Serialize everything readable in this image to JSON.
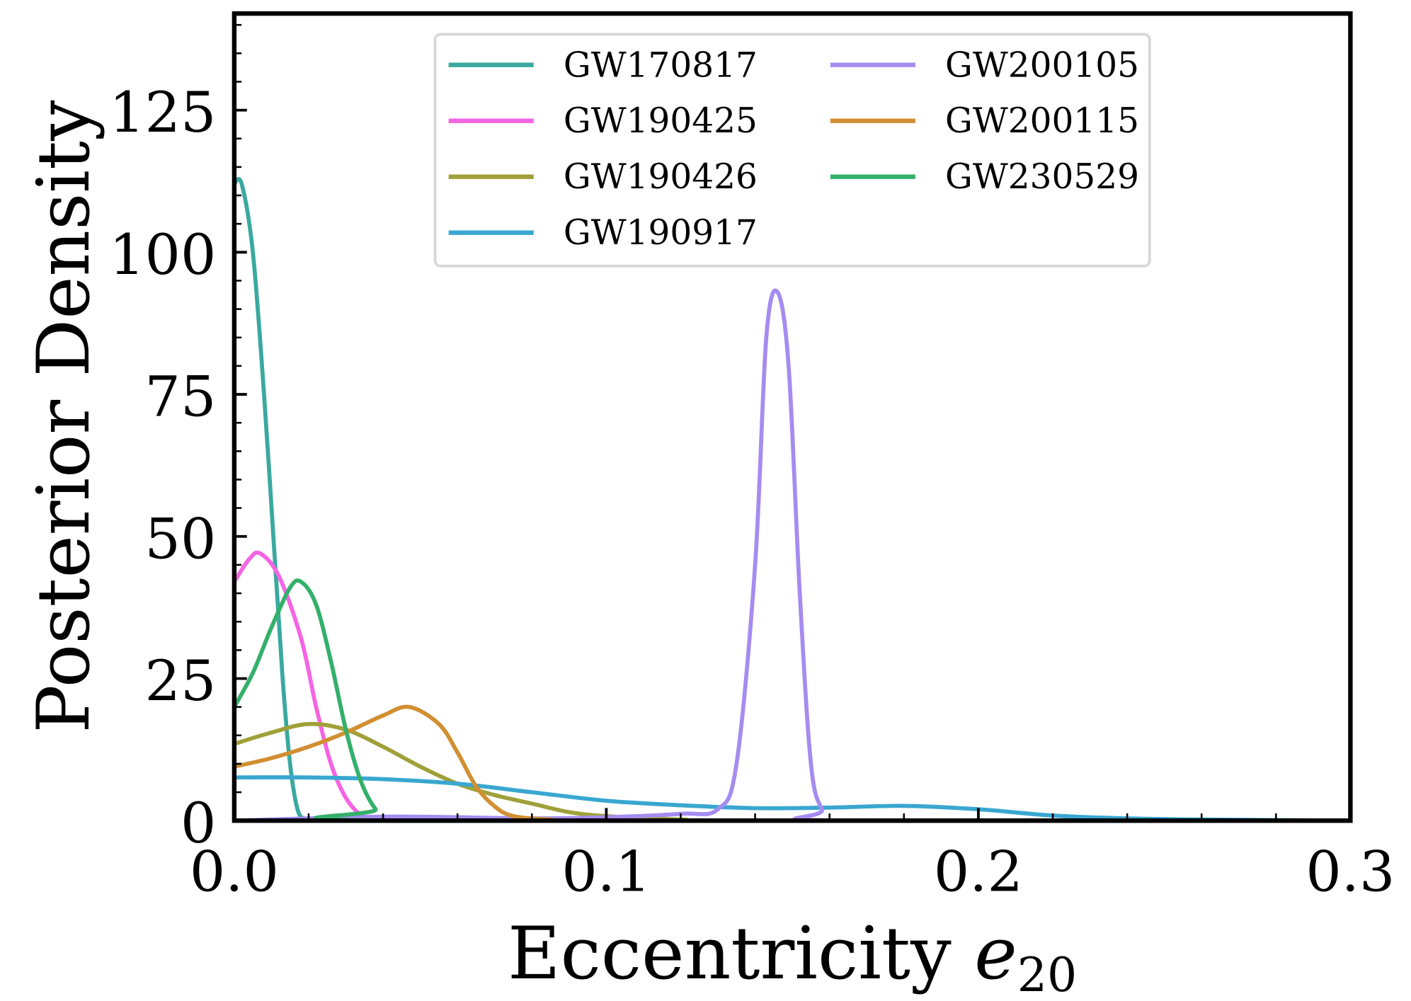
{
  "chart_data": {
    "type": "line",
    "title": "",
    "xlabel": "Eccentricity",
    "xlabel_symbol": "e",
    "xlabel_subscript": "20",
    "ylabel": "Posterior Density",
    "xlim": [
      0,
      0.3
    ],
    "ylim": [
      0,
      142
    ],
    "xticks": [
      0.0,
      0.1,
      0.2,
      0.3
    ],
    "xtick_labels": [
      "0.0",
      "0.1",
      "0.2",
      "0.3"
    ],
    "yticks": [
      0,
      25,
      50,
      75,
      100,
      125
    ],
    "ytick_labels": [
      "0",
      "25",
      "50",
      "75",
      "100",
      "125"
    ],
    "grid": false,
    "legend_placement": "top-center",
    "series": [
      {
        "name": "GW170817",
        "color": "#3aa99f",
        "x": [
          0,
          0.002,
          0.005,
          0.008,
          0.011,
          0.013,
          0.015,
          0.017,
          0.019,
          0.022,
          0.3
        ],
        "y": [
          112,
          112,
          100,
          75,
          45,
          25,
          10,
          2,
          0.3,
          0,
          0
        ]
      },
      {
        "name": "GW190425",
        "color": "#f564e3",
        "x": [
          0,
          0.004,
          0.007,
          0.012,
          0.018,
          0.022,
          0.026,
          0.03,
          0.034,
          0.038,
          0.3
        ],
        "y": [
          42,
          46,
          47,
          43,
          32,
          20,
          10,
          4,
          1,
          0,
          0
        ]
      },
      {
        "name": "GW190426",
        "color": "#a0a03a",
        "x": [
          0,
          0.01,
          0.02,
          0.03,
          0.04,
          0.05,
          0.06,
          0.07,
          0.08,
          0.09,
          0.1,
          0.12,
          0.14,
          0.3
        ],
        "y": [
          13.5,
          15.5,
          17,
          16,
          13,
          9.5,
          6.5,
          4.5,
          3,
          1.5,
          0.8,
          0.2,
          0,
          0
        ]
      },
      {
        "name": "GW190917",
        "color": "#39a7d0",
        "x": [
          0,
          0.02,
          0.04,
          0.06,
          0.08,
          0.1,
          0.12,
          0.14,
          0.16,
          0.18,
          0.2,
          0.22,
          0.24,
          0.26,
          0.3
        ],
        "y": [
          7.6,
          7.6,
          7.3,
          6.5,
          5,
          3.5,
          2.7,
          2.2,
          2.3,
          2.6,
          2.0,
          0.9,
          0.4,
          0.2,
          0
        ]
      },
      {
        "name": "GW200105",
        "color": "#a48cf0",
        "x": [
          0,
          0.04,
          0.08,
          0.1,
          0.12,
          0.13,
          0.135,
          0.14,
          0.143,
          0.146,
          0.149,
          0.152,
          0.155,
          0.158,
          0.162,
          0.3
        ],
        "y": [
          0,
          0.7,
          0.4,
          0.6,
          1.2,
          2,
          10,
          45,
          85,
          93,
          80,
          40,
          10,
          2,
          0,
          0
        ]
      },
      {
        "name": "GW200115",
        "color": "#d18f32",
        "x": [
          0,
          0.01,
          0.02,
          0.03,
          0.04,
          0.047,
          0.055,
          0.06,
          0.065,
          0.07,
          0.075,
          0.085,
          0.1,
          0.3
        ],
        "y": [
          9.5,
          11,
          13,
          15.5,
          18.5,
          20,
          17,
          12,
          6,
          2.5,
          0.8,
          0.2,
          0,
          0
        ]
      },
      {
        "name": "GW230529",
        "color": "#33b06a",
        "x": [
          0,
          0.005,
          0.01,
          0.015,
          0.018,
          0.022,
          0.026,
          0.03,
          0.034,
          0.038,
          0.042,
          0.3
        ],
        "y": [
          20,
          26,
          34,
          41,
          42,
          38,
          28,
          16,
          7,
          2,
          0,
          0
        ]
      }
    ]
  }
}
